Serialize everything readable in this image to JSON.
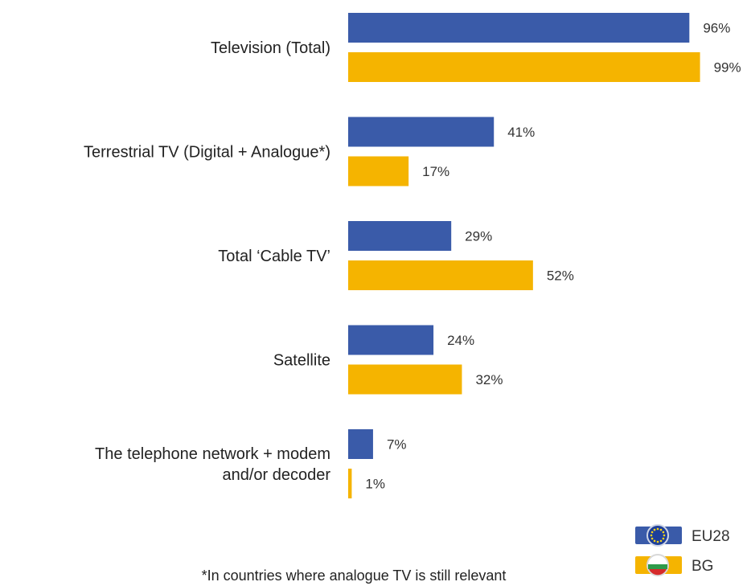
{
  "chart_data": {
    "type": "bar",
    "orientation": "horizontal",
    "categories": [
      [
        "Television (Total)"
      ],
      [
        "Terrestrial TV (Digital + Analogue*)"
      ],
      [
        "Total ‘Cable TV’"
      ],
      [
        "Satellite"
      ],
      [
        "The telephone network + modem",
        "and/or decoder"
      ]
    ],
    "series": [
      {
        "name": "EU28",
        "color": "#3a5ba9",
        "values": [
          96,
          41,
          29,
          24,
          7
        ],
        "labels": [
          "96%",
          "41%",
          "29%",
          "24%",
          "7%"
        ]
      },
      {
        "name": "BG",
        "color": "#f5b400",
        "values": [
          99,
          17,
          52,
          32,
          1
        ],
        "labels": [
          "99%",
          "17%",
          "52%",
          "32%",
          "1%"
        ]
      }
    ],
    "unit": "%",
    "xlim": [
      0,
      100
    ],
    "grid": false,
    "legend_position": "bottom-right",
    "legend_icons": [
      "eu-flag-icon",
      "bulgaria-flag-icon"
    ],
    "footnote": "*In countries where analogue TV is still relevant"
  }
}
